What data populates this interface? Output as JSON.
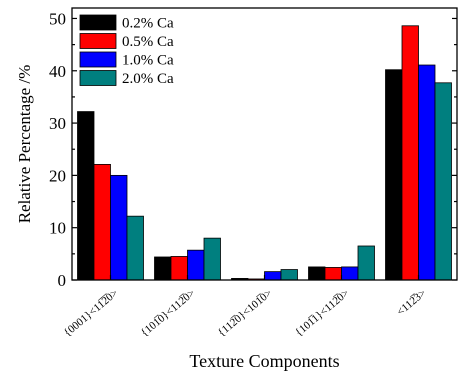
{
  "chart_data": {
    "type": "bar",
    "title": "",
    "xlabel": "Texture Components",
    "ylabel": "Relative Percentage /%",
    "ylim": [
      0,
      52
    ],
    "yticks": [
      0,
      10,
      20,
      30,
      40,
      50
    ],
    "categories": [
      "{0001}<11̅2̅0>",
      "{101̅0}<112̅0>",
      "{112̅0}<101̅0>",
      "{101̅1}<112̅0>",
      "<112̅3>"
    ],
    "series": [
      {
        "name": "0.2% Ca",
        "color": "#000000",
        "values": [
          32.2,
          4.4,
          0.3,
          2.5,
          40.2
        ]
      },
      {
        "name": "0.5% Ca",
        "color": "#ff0000",
        "values": [
          22.1,
          4.5,
          0.2,
          2.4,
          48.6
        ]
      },
      {
        "name": "1.0% Ca",
        "color": "#0000ff",
        "values": [
          20.0,
          5.7,
          1.6,
          2.5,
          41.1
        ]
      },
      {
        "name": "2.0% Ca",
        "color": "#007f7f",
        "values": [
          12.2,
          8.0,
          2.0,
          6.5,
          37.7
        ]
      }
    ],
    "legend": "top-left",
    "grid": false
  }
}
